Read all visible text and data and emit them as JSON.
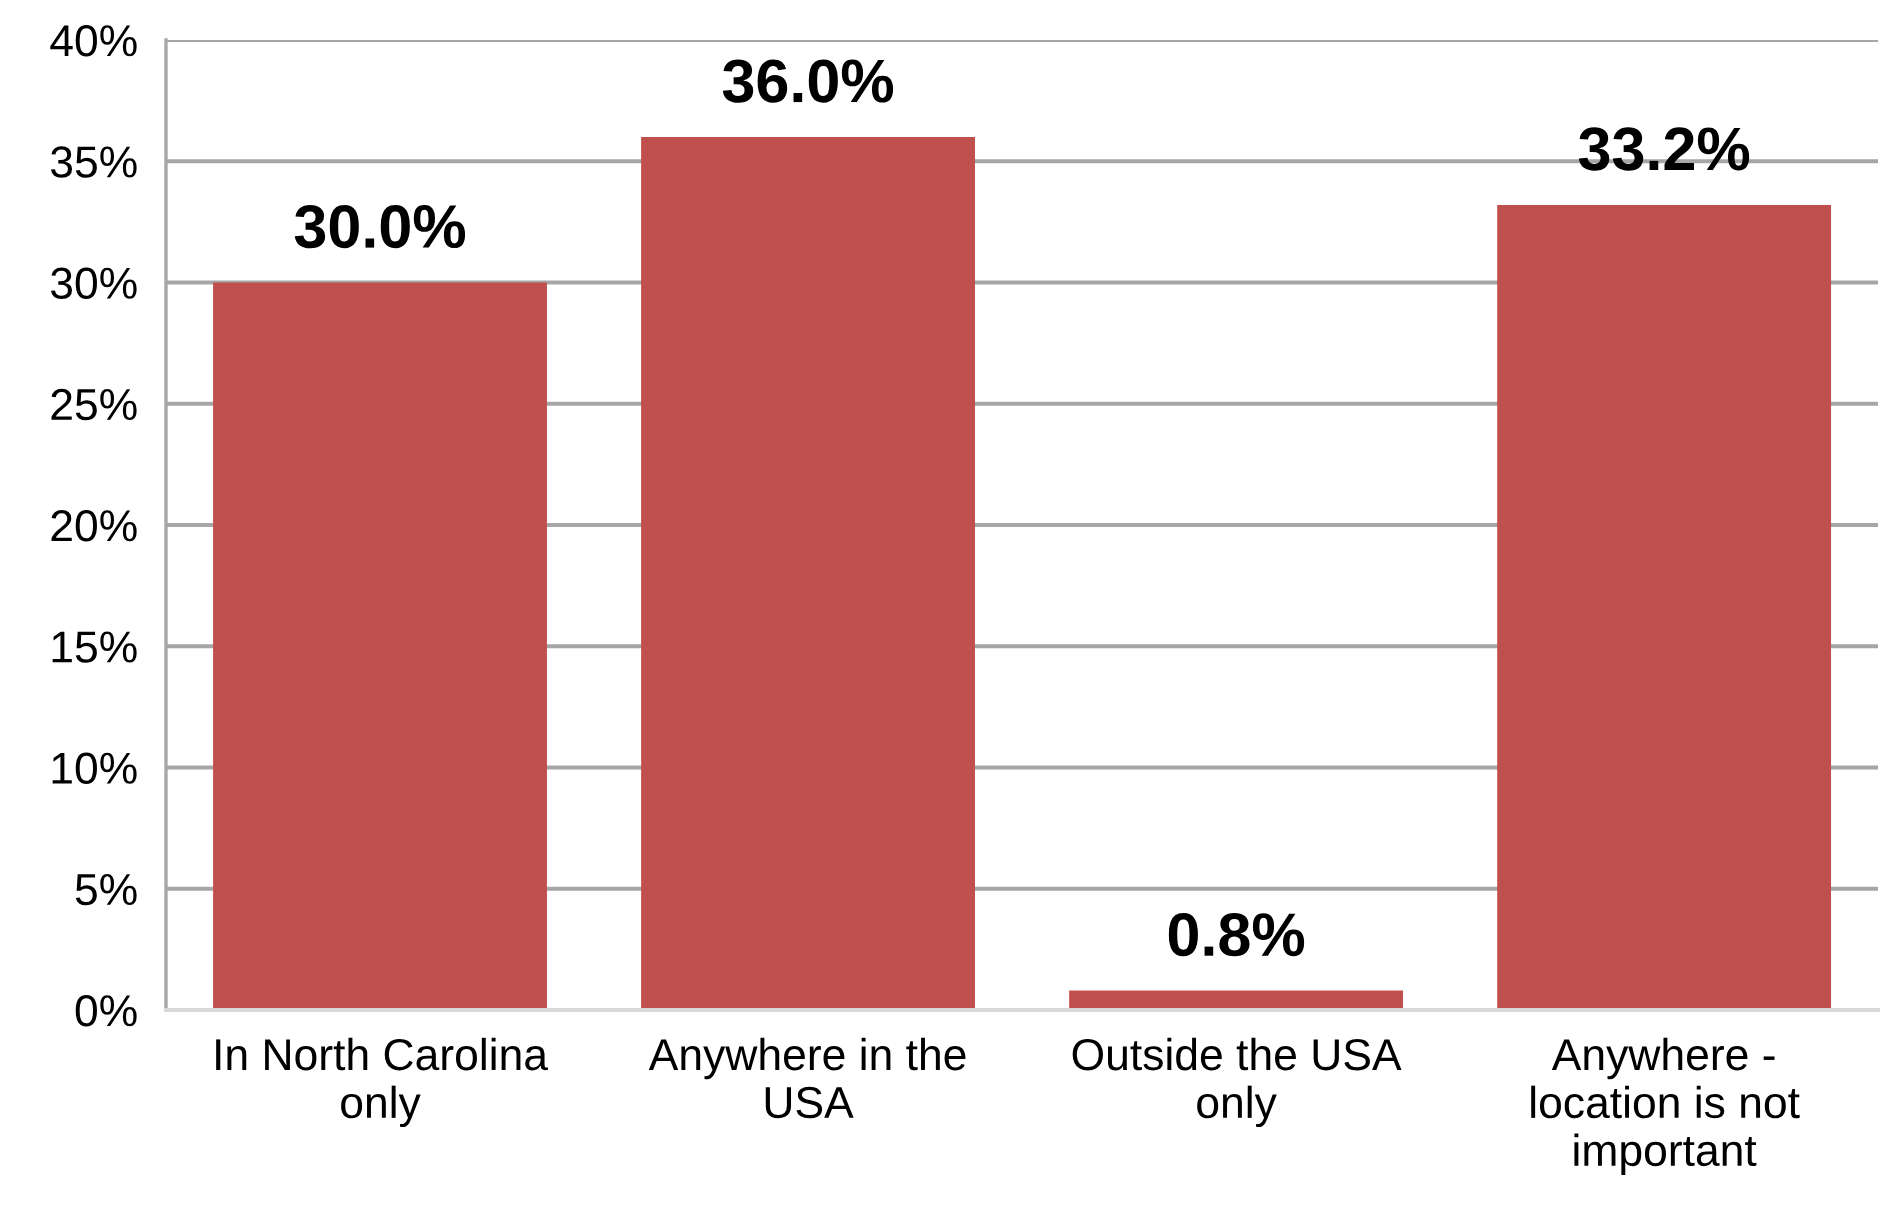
{
  "chart_data": {
    "type": "bar",
    "categories": [
      "In North Carolina\nonly",
      "Anywhere in the\nUSA",
      "Outside the USA\nonly",
      "Anywhere -\nlocation is not\nimportant"
    ],
    "values": [
      30.0,
      36.0,
      0.8,
      33.2
    ],
    "value_labels": [
      "30.0%",
      "36.0%",
      "0.8%",
      "33.2%"
    ],
    "color": "#c0504d",
    "ylim": [
      0,
      40
    ],
    "yticks": [
      {
        "value": 0,
        "label": "0%"
      },
      {
        "value": 5,
        "label": "5%"
      },
      {
        "value": 10,
        "label": "10%"
      },
      {
        "value": 15,
        "label": "15%"
      },
      {
        "value": 20,
        "label": "20%"
      },
      {
        "value": 25,
        "label": "25%"
      },
      {
        "value": 30,
        "label": "30%"
      },
      {
        "value": 35,
        "label": "35%"
      },
      {
        "value": 40,
        "label": "40%"
      }
    ],
    "grid": "y",
    "legend": false
  }
}
